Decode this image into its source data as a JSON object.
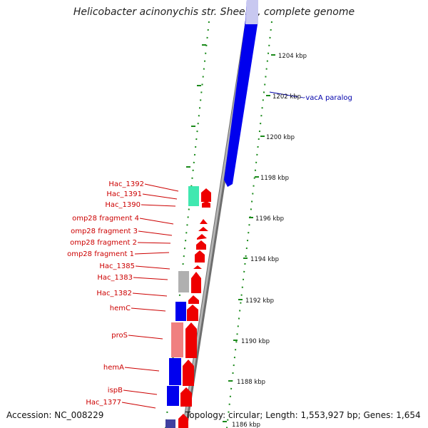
{
  "title": "Helicobacter acinonychis str. Sheeba, complete genome",
  "scale_ticks": [
    "1204 kbp",
    "1202 kbp",
    "1200 kbp",
    "1198 kbp",
    "1196 kbp",
    "1194 kbp",
    "1192 kbp",
    "1190 kbp",
    "1188 kbp",
    "1186 kbp"
  ],
  "annotation": "~vacA paralog",
  "gene_labels": [
    "Hac_1392",
    "Hac_1391",
    "Hac_1390",
    "omp28 fragment 4",
    "omp28 fragment 3",
    "omp28 fragment 2",
    "omp28 fragment 1",
    "Hac_1385",
    "Hac_1383",
    "Hac_1382",
    "hemC",
    "proS",
    "hemA",
    "ispB",
    "Hac_1377"
  ],
  "footer": {
    "accession": "Accession: NC_008229",
    "summary": "Topology: circular; Length: 1,553,927 bp; Genes: 1,654"
  },
  "colors": {
    "backbone": "#8c8c8c",
    "forward_gene": "#ee0000",
    "reverse_gene": "#0000ee",
    "tick": "#1a8a1a",
    "label": "#cc0000",
    "annotation": "#0000aa"
  }
}
